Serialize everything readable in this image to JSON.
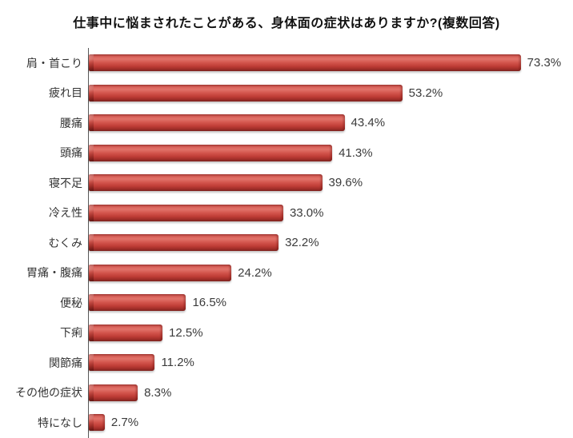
{
  "chart_data": {
    "type": "bar",
    "orientation": "horizontal",
    "title": "仕事中に悩まされたことがある、身体面の症状はありますか?(複数回答)",
    "categories": [
      "肩・首こり",
      "疲れ目",
      "腰痛",
      "頭痛",
      "寝不足",
      "冷え性",
      "むくみ",
      "胃痛・腹痛",
      "便秘",
      "下痢",
      "関節痛",
      "その他の症状",
      "特になし"
    ],
    "values": [
      73.3,
      53.2,
      43.4,
      41.3,
      39.6,
      33.0,
      32.2,
      24.2,
      16.5,
      12.5,
      11.2,
      8.3,
      2.7
    ],
    "value_labels": [
      "73.3%",
      "53.2%",
      "43.4%",
      "41.3%",
      "39.6%",
      "33.0%",
      "32.2%",
      "24.2%",
      "16.5%",
      "12.5%",
      "11.2%",
      "8.3%",
      "2.7%"
    ],
    "xlabel": "",
    "ylabel": "",
    "xlim": [
      0,
      80
    ],
    "grid": false,
    "legend": false,
    "bar_color": "#cc4a43",
    "axis_color": "#595959",
    "title_color": "#111111",
    "label_color": "#333333",
    "value_label_color": "#3b3b3b",
    "background_color": "#ffffff"
  }
}
